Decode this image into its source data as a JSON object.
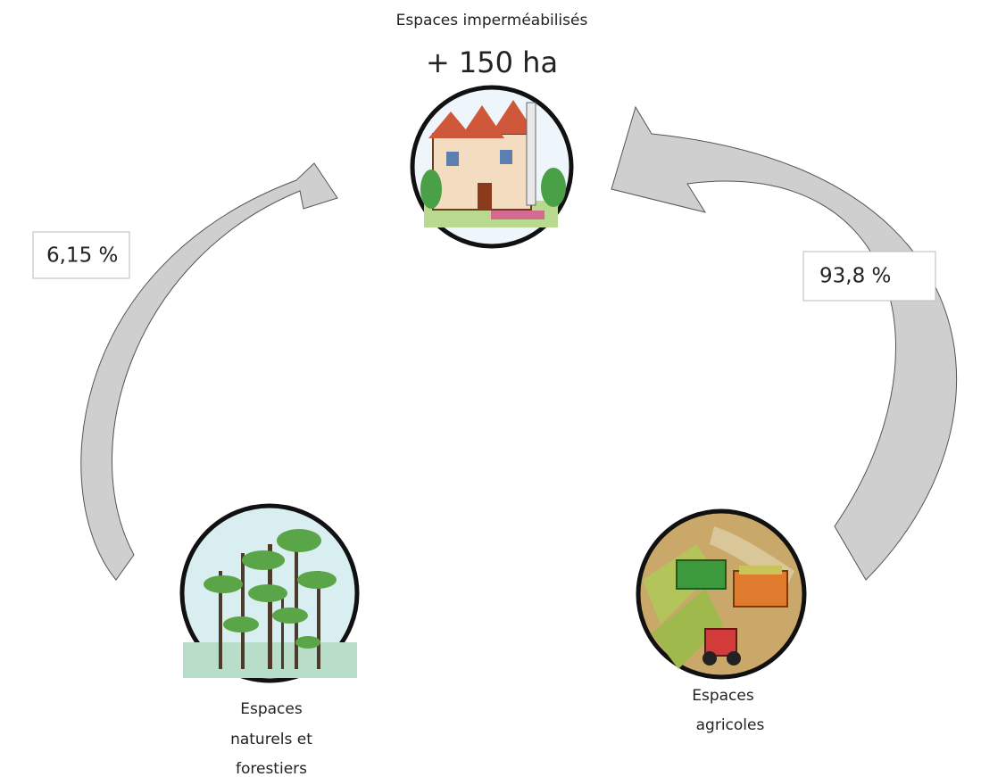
{
  "top": {
    "label": "Espaces imperméabilisés",
    "value": "+ 150 ha"
  },
  "left_node": {
    "label_lines": [
      "Espaces",
      "naturels et",
      "forestiers"
    ]
  },
  "right_node": {
    "label_lines": [
      "Espaces",
      "agricoles"
    ]
  },
  "edges": [
    {
      "label": "6,15 %"
    },
    {
      "label": "93,8 %"
    }
  ]
}
